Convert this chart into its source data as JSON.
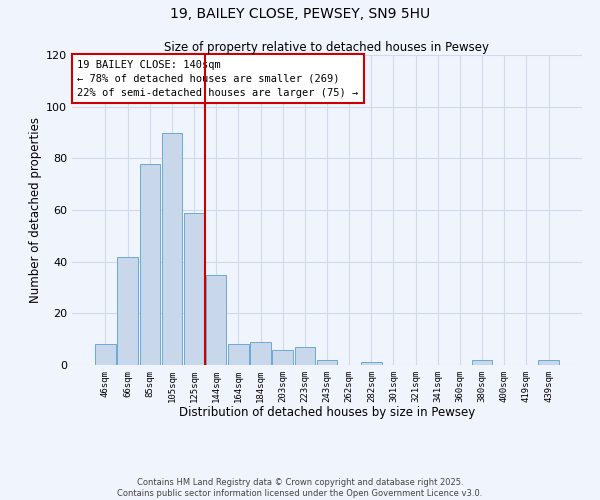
{
  "title": "19, BAILEY CLOSE, PEWSEY, SN9 5HU",
  "subtitle": "Size of property relative to detached houses in Pewsey",
  "xlabel": "Distribution of detached houses by size in Pewsey",
  "ylabel": "Number of detached properties",
  "bar_labels": [
    "46sqm",
    "66sqm",
    "85sqm",
    "105sqm",
    "125sqm",
    "144sqm",
    "164sqm",
    "184sqm",
    "203sqm",
    "223sqm",
    "243sqm",
    "262sqm",
    "282sqm",
    "301sqm",
    "321sqm",
    "341sqm",
    "360sqm",
    "380sqm",
    "400sqm",
    "419sqm",
    "439sqm"
  ],
  "bar_values": [
    8,
    42,
    78,
    90,
    59,
    35,
    8,
    9,
    6,
    7,
    2,
    0,
    1,
    0,
    0,
    0,
    0,
    2,
    0,
    0,
    2
  ],
  "bar_color": "#c8d8ea",
  "bar_edge_color": "#6aaad4",
  "vline_color": "#cc0000",
  "ylim": [
    0,
    120
  ],
  "yticks": [
    0,
    20,
    40,
    60,
    80,
    100,
    120
  ],
  "annotation_title": "19 BAILEY CLOSE: 140sqm",
  "annotation_line1": "← 78% of detached houses are smaller (269)",
  "annotation_line2": "22% of semi-detached houses are larger (75) →",
  "annotation_box_color": "#ffffff",
  "annotation_box_edge_color": "#cc0000",
  "footer_line1": "Contains HM Land Registry data © Crown copyright and database right 2025.",
  "footer_line2": "Contains public sector information licensed under the Open Government Licence v3.0.",
  "bg_color": "#f0f4fc",
  "grid_color": "#d0daea"
}
